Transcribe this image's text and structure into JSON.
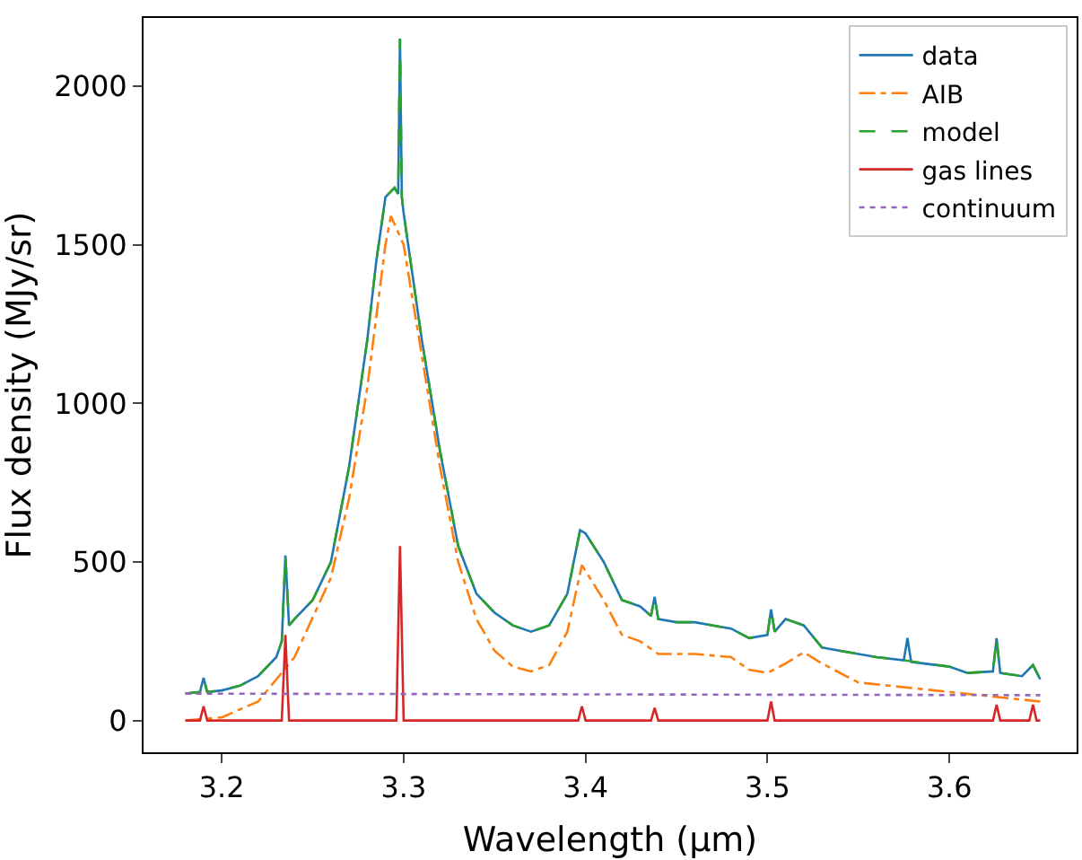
{
  "chart_data": {
    "type": "line",
    "xlabel": "Wavelength (μm)",
    "ylabel": "Flux density (MJy/sr)",
    "xlim": [
      3.157,
      3.67
    ],
    "ylim": [
      -100,
      2215
    ],
    "xticks": [
      {
        "value": 3.2,
        "label": "3.2"
      },
      {
        "value": 3.3,
        "label": "3.3"
      },
      {
        "value": 3.4,
        "label": "3.4"
      },
      {
        "value": 3.5,
        "label": "3.5"
      },
      {
        "value": 3.6,
        "label": "3.6"
      }
    ],
    "yticks": [
      0,
      500,
      1000,
      1500,
      2000
    ],
    "legend": "top right",
    "series": [
      {
        "name": "data",
        "color": "#1f77b4",
        "line_style": "solid",
        "x": [
          3.18,
          3.188,
          3.19,
          3.192,
          3.2,
          3.21,
          3.22,
          3.23,
          3.233,
          3.235,
          3.237,
          3.24,
          3.25,
          3.26,
          3.27,
          3.28,
          3.285,
          3.29,
          3.295,
          3.297,
          3.298,
          3.299,
          3.3,
          3.31,
          3.32,
          3.33,
          3.34,
          3.35,
          3.36,
          3.37,
          3.38,
          3.39,
          3.397,
          3.4,
          3.41,
          3.42,
          3.43,
          3.436,
          3.438,
          3.44,
          3.45,
          3.46,
          3.47,
          3.48,
          3.49,
          3.5,
          3.502,
          3.504,
          3.51,
          3.52,
          3.53,
          3.54,
          3.55,
          3.56,
          3.575,
          3.577,
          3.579,
          3.6,
          3.61,
          3.624,
          3.626,
          3.628,
          3.64,
          3.646,
          3.65
        ],
        "values": [
          85,
          90,
          135,
          90,
          95,
          110,
          140,
          200,
          250,
          520,
          300,
          320,
          380,
          500,
          800,
          1200,
          1450,
          1650,
          1680,
          1660,
          2150,
          1650,
          1600,
          1200,
          850,
          550,
          400,
          340,
          300,
          280,
          300,
          400,
          600,
          590,
          500,
          380,
          360,
          330,
          390,
          320,
          310,
          310,
          300,
          290,
          260,
          270,
          350,
          280,
          320,
          300,
          230,
          220,
          210,
          200,
          190,
          260,
          185,
          170,
          150,
          155,
          260,
          150,
          140,
          175,
          130
        ]
      },
      {
        "name": "AIB",
        "color": "#ff7f0e",
        "line_style": "dashdot",
        "x": [
          3.18,
          3.2,
          3.22,
          3.24,
          3.26,
          3.27,
          3.28,
          3.29,
          3.293,
          3.3,
          3.31,
          3.32,
          3.33,
          3.34,
          3.35,
          3.36,
          3.37,
          3.38,
          3.39,
          3.398,
          3.41,
          3.42,
          3.43,
          3.44,
          3.46,
          3.48,
          3.49,
          3.5,
          3.51,
          3.52,
          3.53,
          3.55,
          3.6,
          3.65
        ],
        "values": [
          0,
          10,
          60,
          200,
          450,
          700,
          1050,
          1500,
          1590,
          1500,
          1150,
          800,
          500,
          320,
          220,
          170,
          155,
          175,
          280,
          490,
          380,
          270,
          250,
          210,
          210,
          200,
          160,
          150,
          180,
          215,
          180,
          120,
          90,
          60
        ]
      },
      {
        "name": "model",
        "color": "#2ca02c",
        "line_style": "dashed",
        "x": [
          3.18,
          3.188,
          3.19,
          3.192,
          3.2,
          3.21,
          3.22,
          3.23,
          3.233,
          3.235,
          3.237,
          3.24,
          3.25,
          3.26,
          3.27,
          3.28,
          3.285,
          3.29,
          3.295,
          3.297,
          3.298,
          3.299,
          3.3,
          3.31,
          3.32,
          3.33,
          3.34,
          3.35,
          3.36,
          3.37,
          3.38,
          3.39,
          3.397,
          3.4,
          3.41,
          3.42,
          3.43,
          3.436,
          3.438,
          3.44,
          3.45,
          3.46,
          3.47,
          3.48,
          3.49,
          3.5,
          3.502,
          3.504,
          3.51,
          3.52,
          3.53,
          3.54,
          3.55,
          3.56,
          3.575,
          3.6,
          3.61,
          3.624,
          3.626,
          3.628,
          3.64,
          3.646,
          3.65
        ],
        "values": [
          85,
          90,
          130,
          90,
          95,
          110,
          140,
          200,
          250,
          520,
          300,
          320,
          380,
          500,
          800,
          1200,
          1450,
          1650,
          1680,
          1660,
          2150,
          1650,
          1600,
          1200,
          850,
          550,
          400,
          340,
          300,
          280,
          300,
          400,
          600,
          590,
          500,
          380,
          360,
          330,
          390,
          320,
          310,
          310,
          300,
          290,
          260,
          270,
          350,
          280,
          320,
          300,
          230,
          220,
          210,
          200,
          190,
          170,
          150,
          155,
          260,
          150,
          140,
          175,
          130
        ]
      },
      {
        "name": "gas lines",
        "color": "#d62728",
        "line_style": "solid",
        "x": [
          3.18,
          3.188,
          3.19,
          3.192,
          3.233,
          3.235,
          3.237,
          3.296,
          3.298,
          3.3,
          3.396,
          3.398,
          3.4,
          3.436,
          3.438,
          3.44,
          3.5,
          3.502,
          3.504,
          3.624,
          3.626,
          3.628,
          3.644,
          3.646,
          3.648,
          3.65
        ],
        "values": [
          0,
          0,
          45,
          0,
          0,
          270,
          0,
          0,
          550,
          0,
          0,
          45,
          0,
          0,
          40,
          0,
          0,
          60,
          0,
          0,
          50,
          0,
          0,
          50,
          0,
          0
        ]
      },
      {
        "name": "continuum",
        "color": "#9467bd",
        "line_style": "dotted",
        "x": [
          3.18,
          3.65
        ],
        "values": [
          85,
          80
        ]
      }
    ]
  }
}
